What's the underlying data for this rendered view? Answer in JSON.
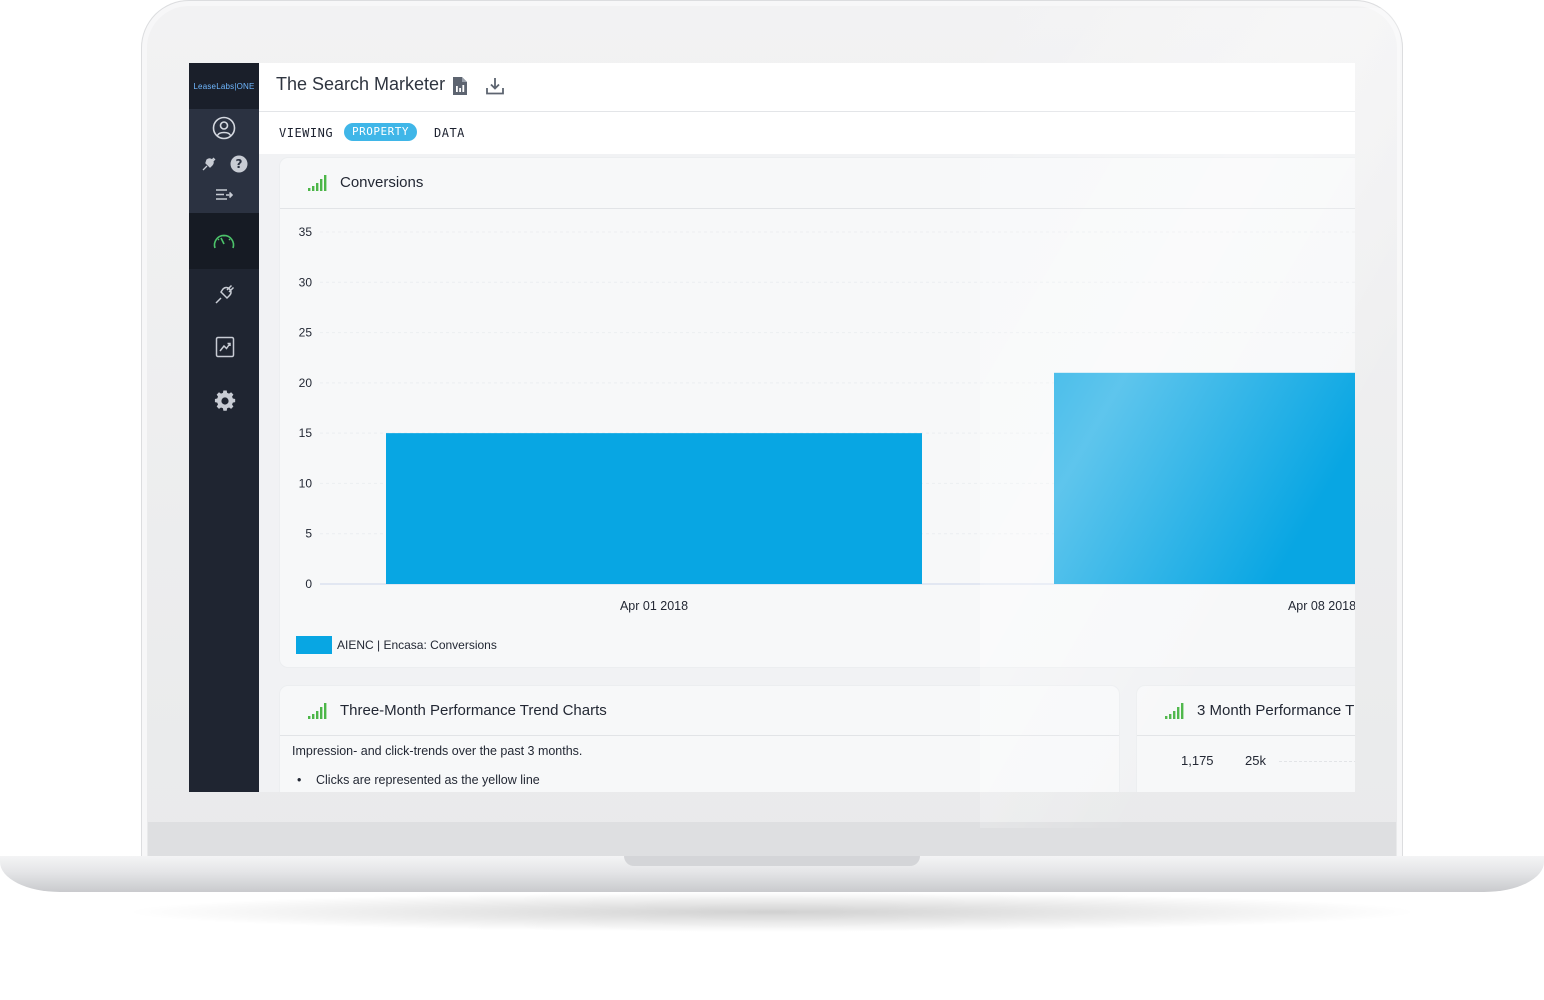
{
  "app": {
    "logo_text": "LeaseLabs|ONE",
    "page_title": "The Search Marketer"
  },
  "viewbar": {
    "viewing": "VIEWING",
    "selected": "PROPERTY",
    "data": "DATA"
  },
  "sidebar": {
    "icons": [
      "user-icon",
      "plug-icon",
      "help-icon",
      "collapse-menu-icon",
      "dashboard-gauge-icon",
      "integrations-plug-icon",
      "report-chart-icon",
      "settings-gear-icon"
    ],
    "active_color": "#4cc36a"
  },
  "conversions_card": {
    "title": "Conversions",
    "legend": "AIENC | Encasa: Conversions"
  },
  "trend_card": {
    "title": "Three-Month Performance Trend Charts",
    "description": "Impression- and click-trends over the past 3 months.",
    "bullet": "Clicks are represented as the yellow line"
  },
  "perf_card": {
    "title": "3 Month Performance T",
    "stat_1": "1,175",
    "stat_2": "25k"
  },
  "colors": {
    "bar": "#08a6e3",
    "accent": "#3fb6e8",
    "signal_green": "#4cb648",
    "sidebar_bg": "#1f2531"
  },
  "chart_data": {
    "type": "bar",
    "title": "Conversions",
    "categories": [
      "Apr 01 2018",
      "Apr 08 2018"
    ],
    "series": [
      {
        "name": "AIENC | Encasa: Conversions",
        "values": [
          15,
          21
        ]
      }
    ],
    "yticks": [
      0,
      5,
      10,
      15,
      20,
      25,
      30,
      35
    ],
    "ylim": [
      0,
      35
    ],
    "xlabel": "",
    "ylabel": "",
    "grid": true,
    "legend": "bottom-left"
  }
}
